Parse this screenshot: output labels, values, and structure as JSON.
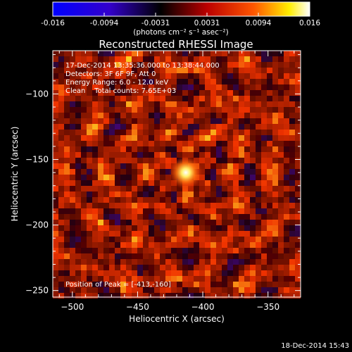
{
  "colorbar": {
    "ticks": [
      "-0.016",
      "-0.0094",
      "-0.0031",
      "0.0031",
      "0.0094",
      "0.016"
    ],
    "unit_label": "(photons cm⁻² s⁻¹ asec⁻²)",
    "colors": [
      "#0000ff",
      "#2200cc",
      "#000000",
      "#cc0000",
      "#ff6600",
      "#ffff00",
      "#ffffff"
    ]
  },
  "chart_data": {
    "type": "heatmap",
    "title": "Reconstructed RHESSI Image",
    "xlabel": "Heliocentric X (arcsec)",
    "ylabel": "Heliocentric Y (arcsec)",
    "xlim": [
      -515,
      -325
    ],
    "ylim": [
      -255,
      -67
    ],
    "xticks": [
      -500,
      -450,
      -400,
      -350
    ],
    "yticks": [
      -100,
      -150,
      -200,
      -250
    ],
    "xtick_labels": [
      "−500",
      "−450",
      "−400",
      "−350"
    ],
    "ytick_labels": [
      "−100",
      "−150",
      "−200",
      "−250"
    ],
    "zlim": [
      -0.016,
      0.016
    ],
    "peak": {
      "x": -413,
      "y": -160
    },
    "annotations": [
      "17-Dec-2014 13:35:36.000 to 13:38:44.000",
      "Detectors: 3F 6F 9F, Att 0",
      "Energy Range: 6.0 - 12.0 keV",
      "Clean    Total counts: 7.65E+03"
    ],
    "peak_text": "Position of Peak = [-413,-160]"
  },
  "footer": {
    "timestamp": "18-Dec-2014 15:43"
  }
}
